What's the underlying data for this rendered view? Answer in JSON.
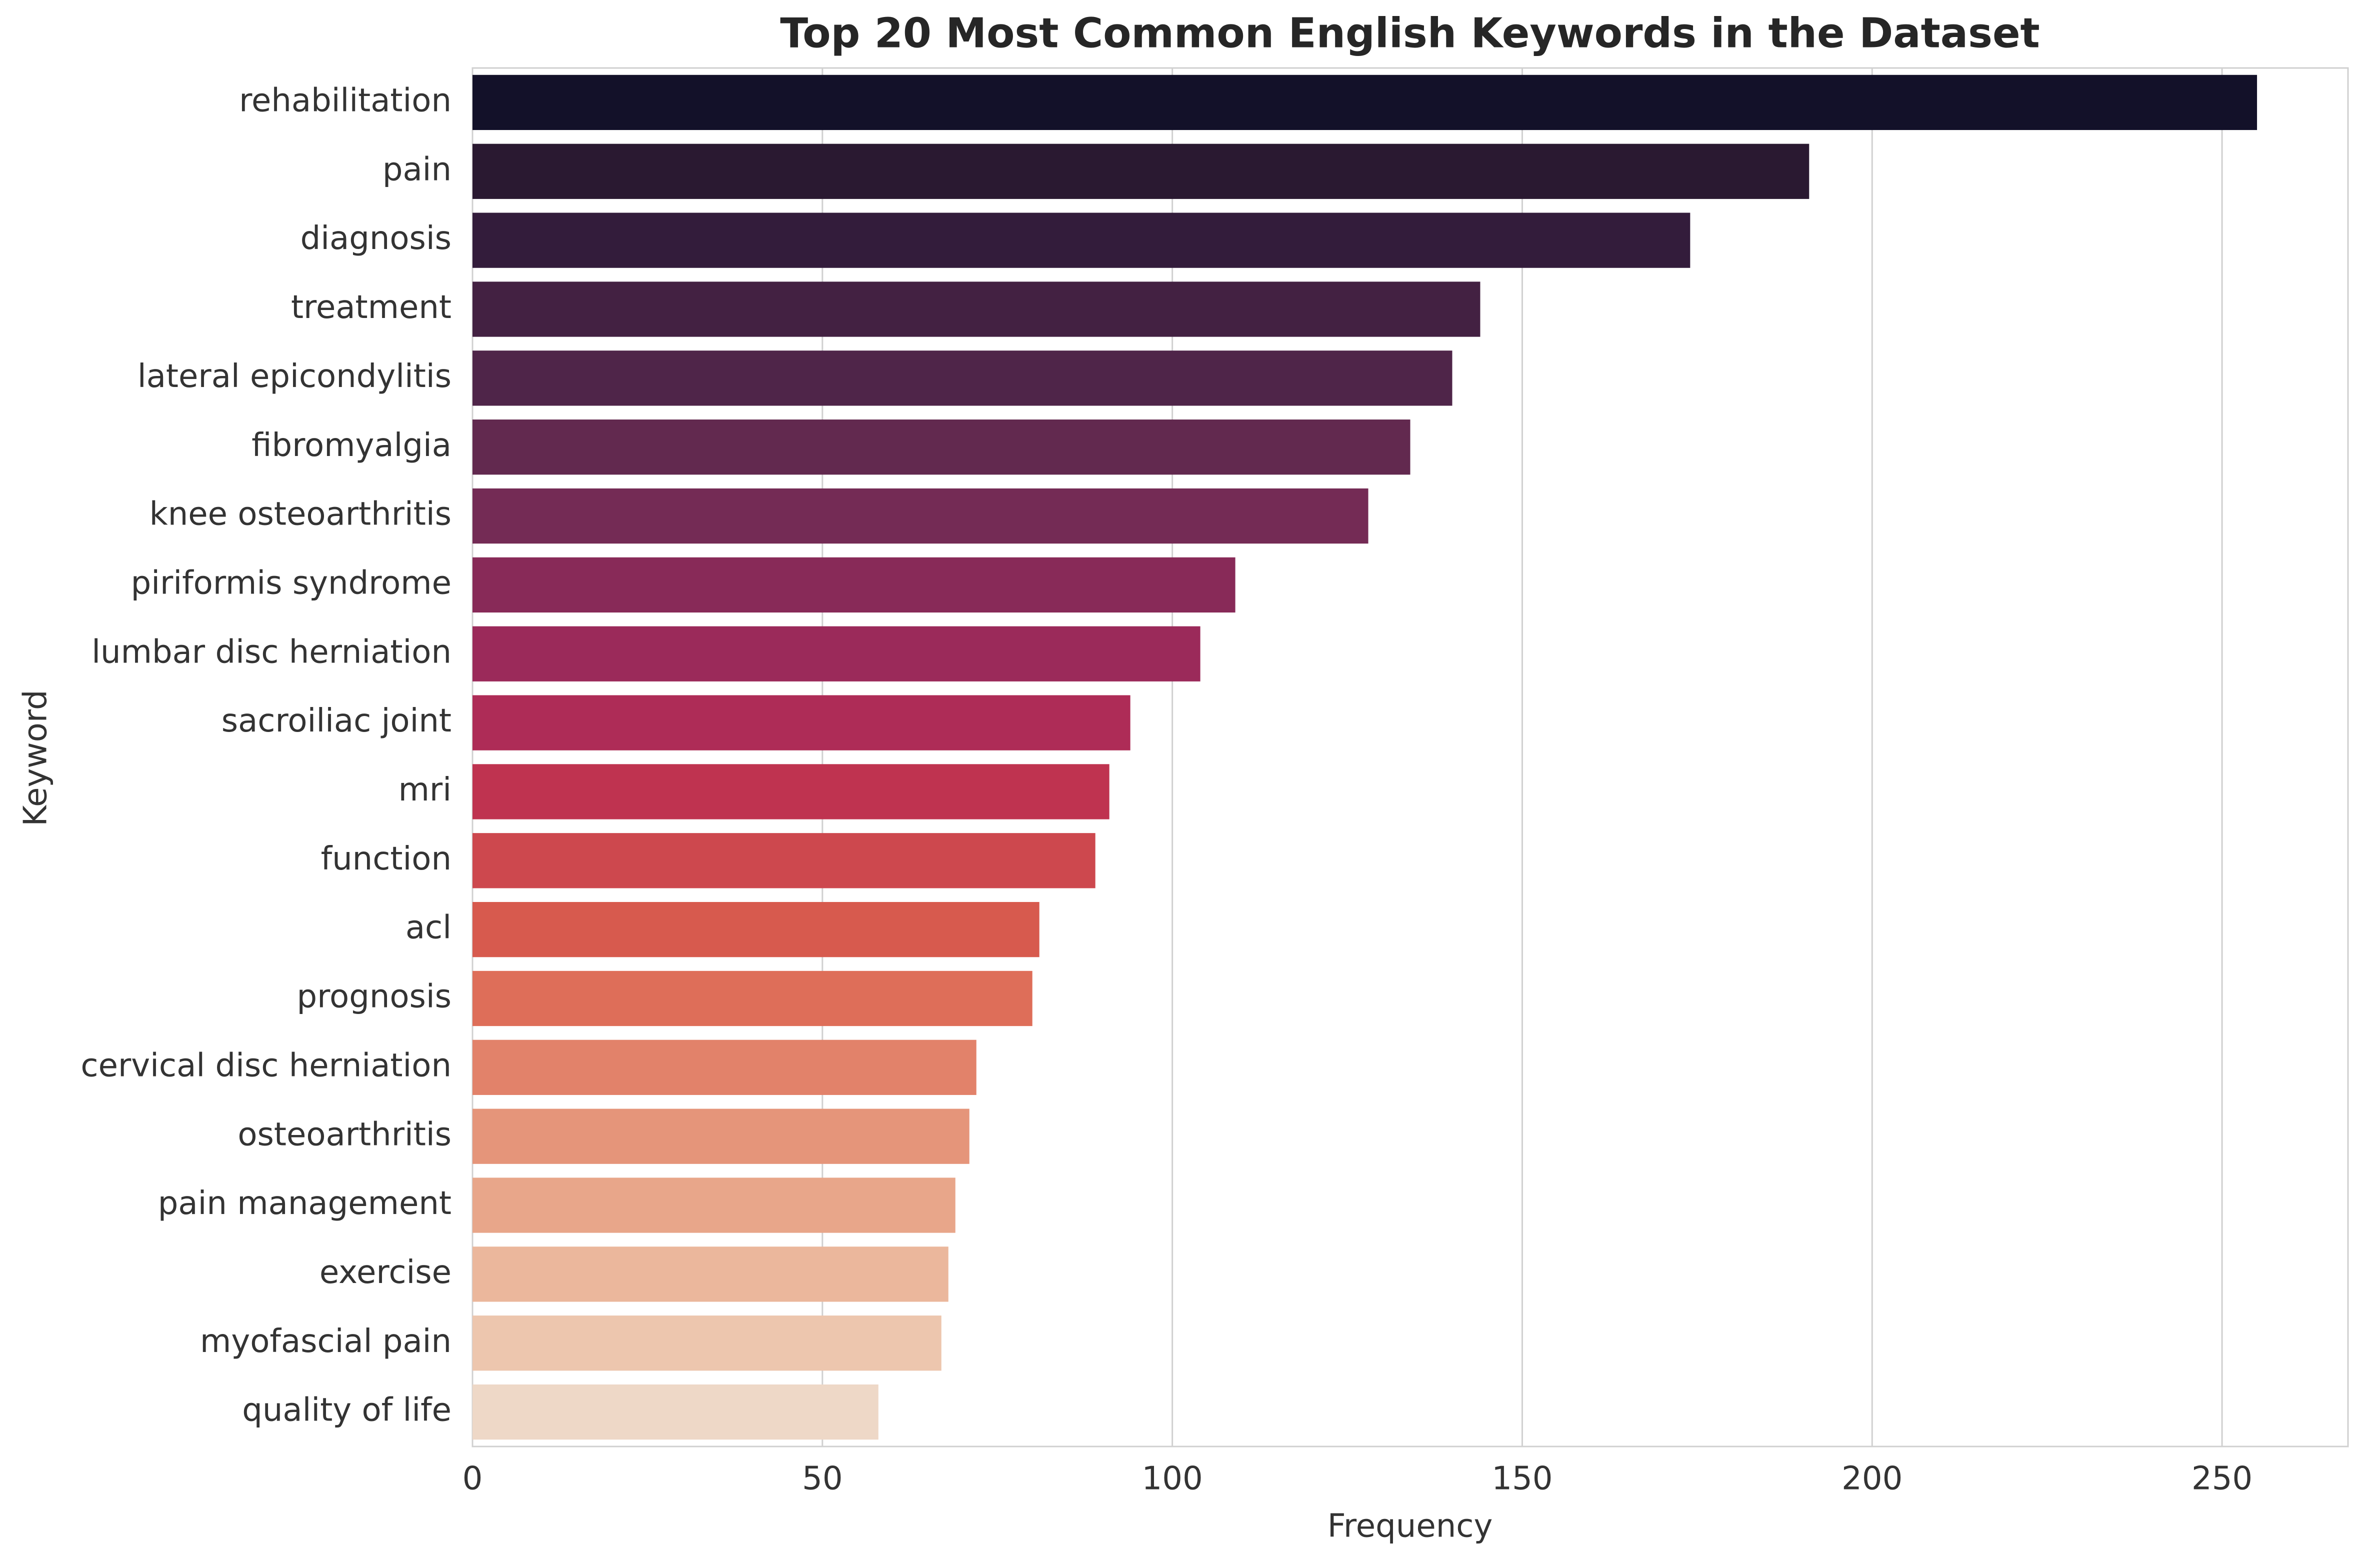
{
  "chart_data": {
    "type": "barh",
    "title": "Top 20 Most Common English Keywords in the Dataset",
    "x_label": "Frequency",
    "y_label": "Keyword",
    "categories": [
      "rehabilitation",
      "pain",
      "diagnosis",
      "treatment",
      "lateral epicondylitis",
      "fibromyalgia",
      "knee osteoarthritis",
      "piriformis syndrome",
      "lumbar disc herniation",
      "sacroiliac joint",
      "mri",
      "function",
      "acl",
      "prognosis",
      "cervical disc herniation",
      "osteoarthritis",
      "pain management",
      "exercise",
      "myofascial pain",
      "quality of life"
    ],
    "values": [
      255,
      191,
      174,
      144,
      140,
      134,
      128,
      109,
      104,
      94,
      91,
      89,
      81,
      80,
      72,
      71,
      69,
      68,
      67,
      58
    ],
    "colors": [
      "#131129",
      "#2a1931",
      "#331c3b",
      "#432142",
      "#4f2549",
      "#62294f",
      "#742b55",
      "#882a58",
      "#9b2a5a",
      "#ae2c57",
      "#bf3350",
      "#cd484e",
      "#d75a4e",
      "#de6e59",
      "#e2826a",
      "#e5957a",
      "#e8a68a",
      "#ebb79c",
      "#edc6ae",
      "#eed8c7"
    ],
    "xlim": [
      0,
      268
    ],
    "xticks": [
      0,
      50,
      100,
      150,
      200,
      250
    ],
    "grid": true
  }
}
